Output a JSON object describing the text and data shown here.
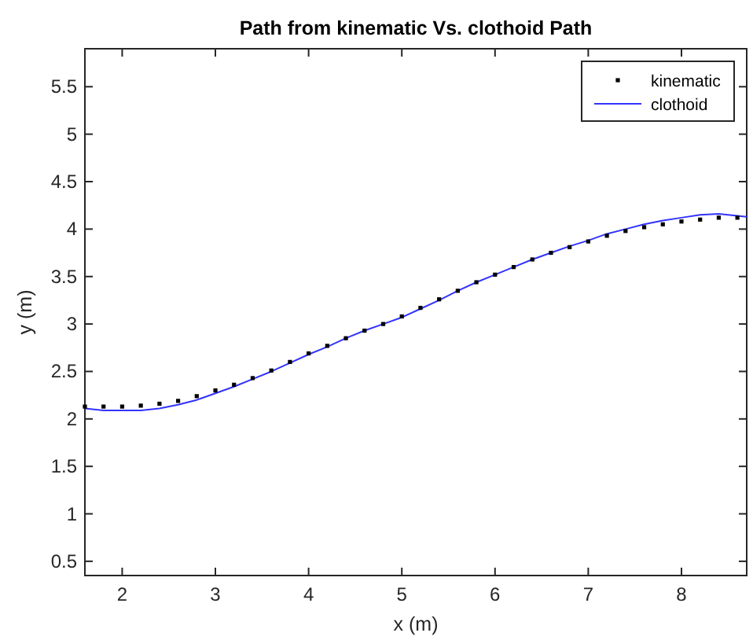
{
  "chart_data": {
    "type": "line",
    "title": "Path from kinematic Vs. clothoid Path",
    "xlabel": "x (m)",
    "ylabel": "y (m)",
    "xlim": [
      1.6,
      8.7
    ],
    "xticks": [
      2,
      3,
      4,
      5,
      6,
      7,
      8
    ],
    "ylim": [
      0.35,
      5.9
    ],
    "yticks": [
      0.5,
      1,
      1.5,
      2,
      2.5,
      3,
      3.5,
      4,
      4.5,
      5,
      5.5
    ],
    "grid": false,
    "legend": "top right",
    "series": [
      {
        "name": "kinematic",
        "type": "scatter",
        "marker": "square",
        "color": "#000000",
        "x": [
          1.6,
          1.8,
          2.0,
          2.2,
          2.4,
          2.6,
          2.8,
          3.0,
          3.2,
          3.4,
          3.6,
          3.8,
          4.0,
          4.2,
          4.4,
          4.6,
          4.8,
          5.0,
          5.2,
          5.4,
          5.6,
          5.8,
          6.0,
          6.2,
          6.4,
          6.6,
          6.8,
          7.0,
          7.2,
          7.4,
          7.6,
          7.8,
          8.0,
          8.2,
          8.4,
          8.6
        ],
        "values": [
          2.13,
          2.13,
          2.13,
          2.14,
          2.16,
          2.19,
          2.24,
          2.3,
          2.36,
          2.43,
          2.51,
          2.6,
          2.69,
          2.77,
          2.85,
          2.93,
          3.0,
          3.08,
          3.17,
          3.26,
          3.35,
          3.44,
          3.52,
          3.6,
          3.68,
          3.75,
          3.81,
          3.87,
          3.93,
          3.98,
          4.02,
          4.05,
          4.08,
          4.1,
          4.12,
          4.12
        ]
      },
      {
        "name": "clothoid",
        "line_style": "solid",
        "color": "#3333ff",
        "x": [
          1.6,
          1.8,
          2.0,
          2.2,
          2.4,
          2.6,
          2.8,
          3.0,
          3.2,
          3.4,
          3.6,
          3.8,
          4.0,
          4.2,
          4.4,
          4.6,
          4.8,
          5.0,
          5.2,
          5.4,
          5.6,
          5.8,
          6.0,
          6.2,
          6.4,
          6.6,
          6.8,
          7.0,
          7.2,
          7.4,
          7.6,
          7.8,
          8.0,
          8.2,
          8.4,
          8.6,
          8.7
        ],
        "values": [
          2.11,
          2.09,
          2.09,
          2.09,
          2.11,
          2.15,
          2.2,
          2.27,
          2.34,
          2.42,
          2.5,
          2.59,
          2.68,
          2.76,
          2.85,
          2.93,
          3.0,
          3.07,
          3.16,
          3.25,
          3.35,
          3.44,
          3.52,
          3.6,
          3.68,
          3.75,
          3.82,
          3.88,
          3.95,
          4.0,
          4.05,
          4.09,
          4.12,
          4.15,
          4.16,
          4.14,
          4.13
        ]
      }
    ]
  }
}
